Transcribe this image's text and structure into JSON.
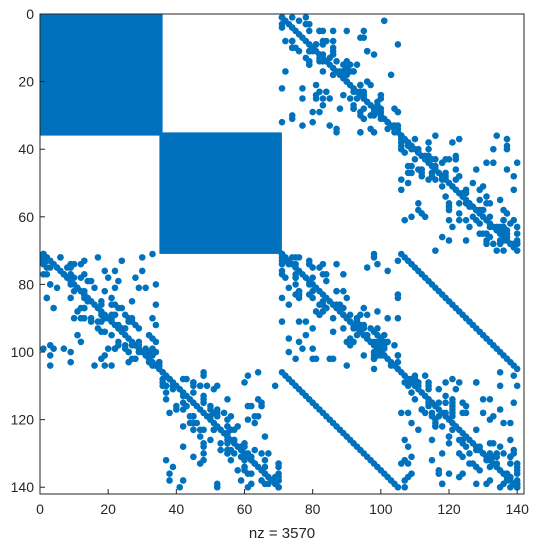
{
  "chart_data": {
    "type": "spy",
    "color": "#0072BD",
    "xlabel": "nz = 3570",
    "xlim": [
      0,
      142
    ],
    "ylim": [
      0,
      142
    ],
    "y_reversed": true,
    "grid": false,
    "xticks": [
      0,
      20,
      40,
      60,
      80,
      100,
      120,
      140
    ],
    "yticks": [
      0,
      20,
      40,
      60,
      80,
      100,
      120,
      140
    ],
    "dense_blocks": [
      {
        "rows": [
          1,
          35
        ],
        "cols": [
          1,
          35
        ]
      },
      {
        "rows": [
          36,
          70
        ],
        "cols": [
          36,
          70
        ]
      }
    ],
    "diagonals": [
      {
        "row_start": 1,
        "col_start": 71,
        "length": 35
      },
      {
        "row_start": 36,
        "col_start": 106,
        "length": 35
      },
      {
        "row_start": 71,
        "col_start": 1,
        "length": 35
      },
      {
        "row_start": 106,
        "col_start": 36,
        "length": 35
      },
      {
        "row_start": 71,
        "col_start": 71,
        "length": 70
      },
      {
        "row_start": 71,
        "col_start": 106,
        "length": 35
      },
      {
        "row_start": 106,
        "col_start": 71,
        "length": 35
      }
    ],
    "scattered_blocks": [
      {
        "rows": [
          1,
          35
        ],
        "cols": [
          71,
          105
        ]
      },
      {
        "rows": [
          36,
          70
        ],
        "cols": [
          106,
          140
        ]
      },
      {
        "rows": [
          71,
          105
        ],
        "cols": [
          1,
          35
        ]
      },
      {
        "rows": [
          106,
          140
        ],
        "cols": [
          36,
          70
        ]
      },
      {
        "rows": [
          71,
          105
        ],
        "cols": [
          71,
          105
        ]
      },
      {
        "rows": [
          106,
          140
        ],
        "cols": [
          106,
          140
        ]
      }
    ],
    "scatter_points_per_block": 150
  }
}
